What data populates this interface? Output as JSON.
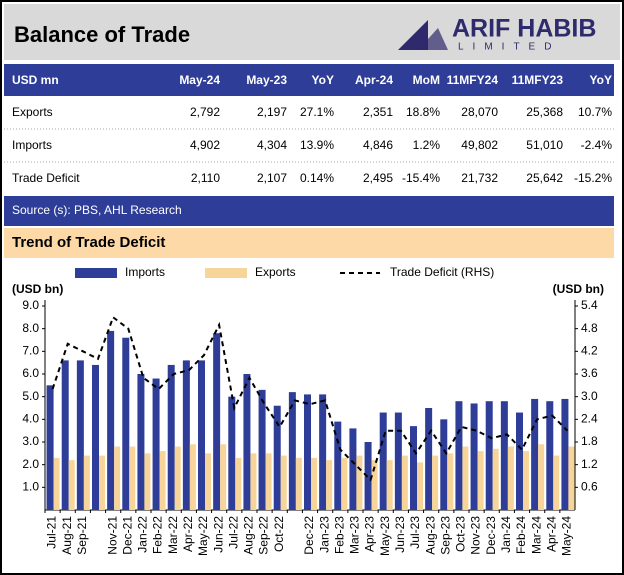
{
  "header": {
    "title": "Balance of Trade",
    "logo": {
      "name": "ARIF HABIB",
      "sub": "LIMITED"
    }
  },
  "table": {
    "header": [
      "USD mn",
      "May-24",
      "May-23",
      "YoY",
      "Apr-24",
      "MoM",
      "11MFY24",
      "11MFY23",
      "YoY"
    ],
    "rows": [
      [
        "Exports",
        "2,792",
        "2,197",
        "27.1%",
        "2,351",
        "18.8%",
        "28,070",
        "25,368",
        "10.7%"
      ],
      [
        "Imports",
        "4,902",
        "4,304",
        "13.9%",
        "4,846",
        "1.2%",
        "49,802",
        "51,010",
        "-2.4%"
      ],
      [
        "Trade Deficit",
        "2,110",
        "2,107",
        "0.14%",
        "2,495",
        "-15.4%",
        "21,732",
        "25,642",
        "-15.2%"
      ]
    ]
  },
  "source": "Source (s): PBS, AHL Research",
  "chart_data": {
    "type": "bar",
    "title": "Trend of Trade Deficit",
    "y_label": "(USD bn)",
    "y2_label": "(USD bn)",
    "legend": "top",
    "grid": false,
    "categories": [
      "Jul-21",
      "Aug-21",
      "Sep-21",
      null,
      "Nov-21",
      "Dec-21",
      "Jan-22",
      "Feb-22",
      "Mar-22",
      "Apr-22",
      "May-22",
      "Jun-22",
      "Jul-22",
      "Aug-22",
      "Sep-22",
      "Oct-22",
      null,
      "Dec-22",
      "Jan-23",
      "Feb-23",
      "Mar-23",
      "Apr-23",
      "May-23",
      "Jun-23",
      "Jul-23",
      "Aug-23",
      "Sep-23",
      "Oct-23",
      "Nov-23",
      "Dec-23",
      "Jan-24",
      "Feb-24",
      "Mar-24",
      "Apr-24",
      "May-24"
    ],
    "series": [
      {
        "name": "Imports",
        "color": "#2e3d98",
        "values": [
          5.5,
          6.6,
          6.6,
          6.4,
          7.9,
          7.6,
          6.0,
          5.8,
          6.4,
          6.6,
          6.6,
          7.8,
          5.0,
          6.0,
          5.3,
          4.6,
          5.2,
          5.1,
          5.1,
          3.9,
          3.6,
          3.0,
          4.3,
          4.3,
          3.7,
          4.5,
          4.0,
          4.8,
          4.7,
          4.8,
          4.8,
          4.3,
          4.9,
          4.8,
          4.9
        ]
      },
      {
        "name": "Exports",
        "color": "#f7d59a",
        "values": [
          2.3,
          2.2,
          2.4,
          2.4,
          2.8,
          2.8,
          2.5,
          2.6,
          2.8,
          2.9,
          2.5,
          2.9,
          2.3,
          2.5,
          2.5,
          2.4,
          2.3,
          2.3,
          2.2,
          2.3,
          2.4,
          2.2,
          2.2,
          2.4,
          2.1,
          2.4,
          2.5,
          2.8,
          2.6,
          2.7,
          2.8,
          2.6,
          2.9,
          2.4,
          2.8
        ]
      },
      {
        "name": "Trade Deficit (RHS)",
        "color": "#000000",
        "axis": "y2",
        "values": [
          3.2,
          4.4,
          4.2,
          4.0,
          5.1,
          4.8,
          3.5,
          3.2,
          3.6,
          3.7,
          4.1,
          4.9,
          2.7,
          3.5,
          2.8,
          2.2,
          2.9,
          2.8,
          2.9,
          1.6,
          1.2,
          0.8,
          2.1,
          2.1,
          1.5,
          2.1,
          1.5,
          2.2,
          2.1,
          1.9,
          2.0,
          1.6,
          2.4,
          2.5,
          2.1
        ]
      }
    ],
    "ylim": [
      0,
      9
    ],
    "yticks": [
      {
        "value": 1,
        "label": "1.0"
      },
      {
        "value": 2,
        "label": "2.0"
      },
      {
        "value": 3,
        "label": "3.0"
      },
      {
        "value": 4,
        "label": "4.0"
      },
      {
        "value": 5,
        "label": "5.0"
      },
      {
        "value": 6,
        "label": "6.0"
      },
      {
        "value": 7,
        "label": "7.0"
      },
      {
        "value": 8,
        "label": "8.0"
      },
      {
        "value": 9,
        "label": "9.0"
      }
    ],
    "y2lim": [
      0,
      5.4
    ],
    "y2ticks": [
      0.6,
      1.2,
      1.8,
      2.4,
      {
        "value": 3,
        "label": "3.0"
      },
      3.6,
      4.2,
      4.8,
      5.4
    ]
  }
}
